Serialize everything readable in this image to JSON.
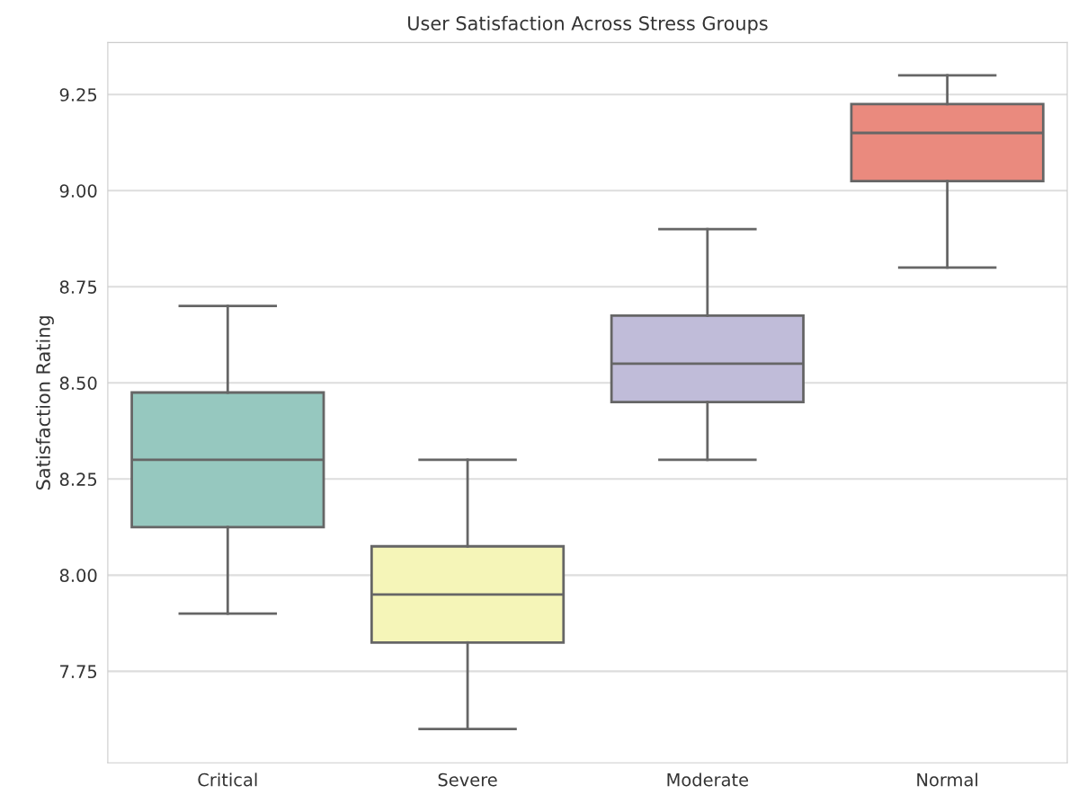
{
  "chart_data": {
    "type": "box",
    "title": "User Satisfaction Across Stress Groups",
    "ylabel": "Satisfaction Rating",
    "categories": [
      "Critical",
      "Severe",
      "Moderate",
      "Normal"
    ],
    "colors": [
      "#96c8bf",
      "#f5f5b8",
      "#c0bcd9",
      "#ea8a7e"
    ],
    "boxes": [
      {
        "low": 7.9,
        "q1": 8.125,
        "median": 8.3,
        "q3": 8.475,
        "high": 8.7
      },
      {
        "low": 7.6,
        "q1": 7.825,
        "median": 7.95,
        "q3": 8.075,
        "high": 8.3
      },
      {
        "low": 8.3,
        "q1": 8.45,
        "median": 8.55,
        "q3": 8.675,
        "high": 8.9
      },
      {
        "low": 8.8,
        "q1": 9.025,
        "median": 9.15,
        "q3": 9.225,
        "high": 9.3
      }
    ],
    "ylim": [
      7.512,
      9.385
    ],
    "yticks": [
      {
        "value": 7.75,
        "label": "7.75"
      },
      {
        "value": 8.0,
        "label": "8.00"
      },
      {
        "value": 8.25,
        "label": "8.25"
      },
      {
        "value": 8.5,
        "label": "8.50"
      },
      {
        "value": 8.75,
        "label": "8.75"
      },
      {
        "value": 9.0,
        "label": "9.00"
      },
      {
        "value": 9.25,
        "label": "9.25"
      }
    ],
    "grid": "y"
  }
}
